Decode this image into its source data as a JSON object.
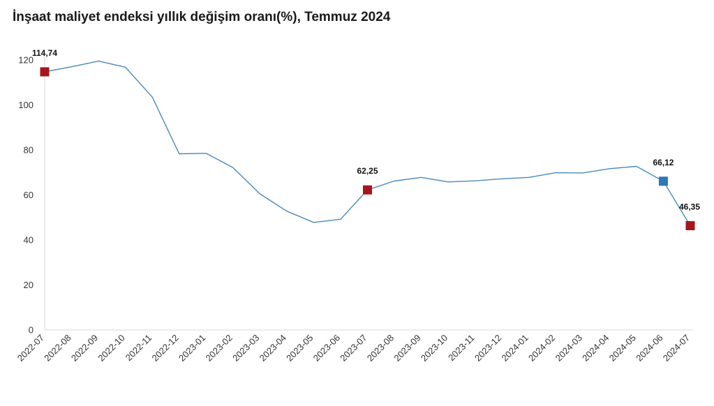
{
  "chart_data": {
    "type": "line",
    "title": "İnşaat maliyet endeksi yıllık değişim oranı(%), Temmuz 2024",
    "xlabel": "",
    "ylabel": "",
    "ylim": [
      0,
      120
    ],
    "yticks": [
      "0",
      "20",
      "40",
      "60",
      "80",
      "100",
      "120"
    ],
    "grid": false,
    "categories": [
      "2022-07",
      "2022-08",
      "2022-09",
      "2022-10",
      "2022-11",
      "2022-12",
      "2023-01",
      "2023-02",
      "2023-03",
      "2023-04",
      "2023-05",
      "2023-06",
      "2023-07",
      "2023-08",
      "2023-09",
      "2023-10",
      "2023-11",
      "2023-12",
      "2024-01",
      "2024-02",
      "2024-03",
      "2024-04",
      "2024-05",
      "2024-06",
      "2024-07"
    ],
    "series": [
      {
        "values": [
          114.74,
          117,
          119.5,
          116.8,
          103.5,
          78.3,
          78.5,
          72.2,
          60.5,
          52.8,
          47.8,
          49.2,
          62.25,
          66.2,
          67.8,
          65.8,
          66.3,
          67.2,
          67.8,
          69.9,
          69.8,
          71.7,
          72.7,
          66.12,
          46.35
        ],
        "color": "#4a8ab8"
      }
    ],
    "annotations": [
      {
        "category": "2022-07",
        "label": "114,74",
        "value": 114.74,
        "marker_color": "#a8151d"
      },
      {
        "category": "2023-07",
        "label": "62,25",
        "value": 62.25,
        "marker_color": "#a8151d"
      },
      {
        "category": "2024-06",
        "label": "66,12",
        "value": 66.12,
        "marker_color": "#2e78b8"
      },
      {
        "category": "2024-07",
        "label": "46,35",
        "value": 46.35,
        "marker_color": "#a8151d"
      }
    ]
  }
}
